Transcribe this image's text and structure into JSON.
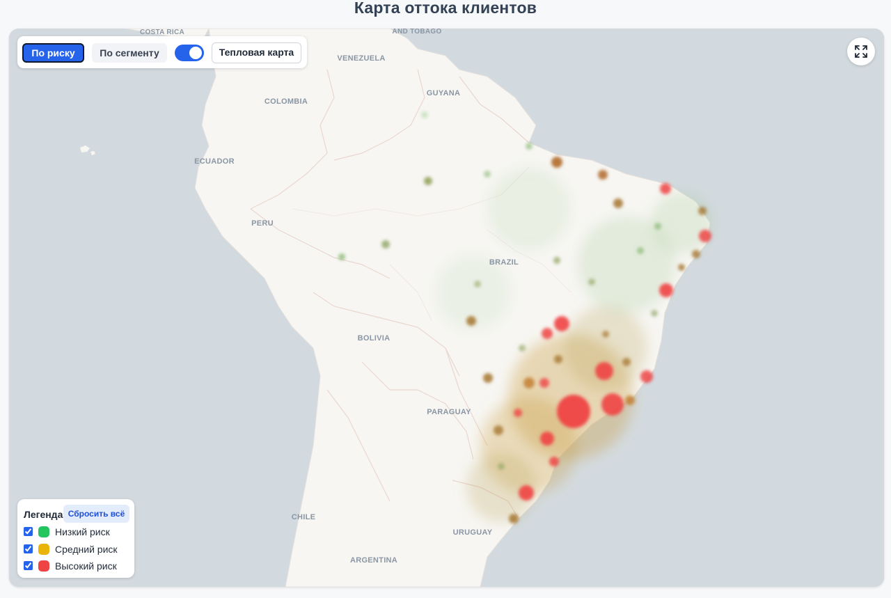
{
  "page": {
    "title": "Карта оттока клиентов"
  },
  "toolbar": {
    "by_risk": "По риску",
    "by_segment": "По сегменту",
    "toggle_on": true,
    "heatmap": "Тепловая карта"
  },
  "map": {
    "labels": {
      "costa_rica": "COSTA RICA",
      "trinidad": "AND TOBAGO",
      "venezuela": "VENEZUELA",
      "colombia": "COLOMBIA",
      "guyana": "GUYANA",
      "ecuador": "ECUADOR",
      "peru": "PERU",
      "brazil": "BRAZIL",
      "bolivia": "BOLIVIA",
      "paraguay": "PARAGUAY",
      "chile": "CHILE",
      "uruguay": "URUGUAY",
      "argentina": "ARGENTINA"
    },
    "colors": {
      "low": "#22c55e",
      "medium": "#eab308",
      "high": "#ef4444"
    },
    "hotspots": [
      {
        "risk": "high",
        "intensity": 1.0
      },
      {
        "risk": "high",
        "intensity": 0.8
      },
      {
        "risk": "high",
        "intensity": 0.8
      },
      {
        "risk": "high",
        "intensity": 0.7
      },
      {
        "risk": "high",
        "intensity": 0.6
      },
      {
        "risk": "high",
        "intensity": 0.6
      },
      {
        "risk": "high",
        "intensity": 0.6
      },
      {
        "risk": "high",
        "intensity": 0.5
      },
      {
        "risk": "high",
        "intensity": 0.5
      },
      {
        "risk": "high",
        "intensity": 0.5
      },
      {
        "risk": "medium",
        "intensity": 0.5
      },
      {
        "risk": "medium",
        "intensity": 0.4
      },
      {
        "risk": "low",
        "intensity": 0.3
      }
    ]
  },
  "legend": {
    "title": "Легенда:",
    "reset": "Сбросить всё",
    "items": [
      {
        "label": "Низкий риск",
        "color": "#22c55e",
        "checked": true
      },
      {
        "label": "Средний риск",
        "color": "#eab308",
        "checked": true
      },
      {
        "label": "Высокий риск",
        "color": "#ef4444",
        "checked": true
      }
    ]
  }
}
